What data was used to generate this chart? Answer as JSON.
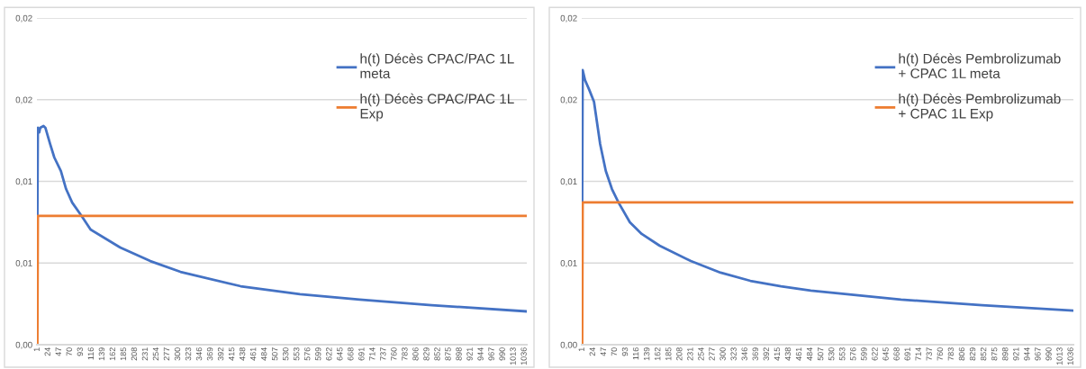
{
  "chart_data": [
    {
      "type": "line",
      "xlim": [
        0,
        1041
      ],
      "xticks": [
        1,
        24,
        47,
        70,
        93,
        116,
        139,
        162,
        185,
        208,
        231,
        254,
        277,
        300,
        323,
        346,
        369,
        392,
        415,
        438,
        461,
        484,
        507,
        530,
        553,
        576,
        599,
        622,
        645,
        668,
        691,
        714,
        737,
        760,
        783,
        806,
        829,
        852,
        875,
        898,
        921,
        944,
        967,
        990,
        1013,
        1036
      ],
      "ylim": [
        0,
        0.02
      ],
      "yticks": [
        {
          "value": 0,
          "label": "0,00"
        },
        {
          "value": 0.005,
          "label": "0,01"
        },
        {
          "value": 0.01,
          "label": "0,01"
        },
        {
          "value": 0.015,
          "label": "0,02"
        },
        {
          "value": 0.02,
          "label": "0,02"
        }
      ],
      "grid": "y",
      "legend": "top right",
      "series": [
        {
          "name": "h(t) Décès CPAC/PAC 1L meta",
          "color": "#4472c4",
          "x": [
            1,
            2,
            5,
            7,
            14,
            18,
            28,
            37,
            51,
            62,
            75,
            95,
            114,
            177,
            241,
            305,
            433,
            559,
            686,
            839,
            1040
          ],
          "values": [
            0.0079,
            0.01328,
            0.013,
            0.01328,
            0.01339,
            0.01328,
            0.01229,
            0.01146,
            0.01063,
            0.00953,
            0.0087,
            0.00788,
            0.00705,
            0.00595,
            0.00512,
            0.00446,
            0.00358,
            0.00309,
            0.00276,
            0.00242,
            0.00204
          ]
        },
        {
          "name": "h(t) Décès CPAC/PAC 1L Exp",
          "color": "#ed7d31",
          "x": [
            1,
            2,
            1040
          ],
          "values": [
            0,
            0.00788,
            0.00788
          ]
        }
      ]
    },
    {
      "type": "line",
      "xlim": [
        0,
        1041
      ],
      "xticks": [
        1,
        24,
        47,
        70,
        93,
        116,
        139,
        162,
        185,
        208,
        231,
        254,
        277,
        300,
        323,
        346,
        369,
        392,
        415,
        438,
        461,
        484,
        507,
        530,
        553,
        576,
        599,
        622,
        645,
        668,
        691,
        714,
        737,
        760,
        783,
        806,
        829,
        852,
        875,
        898,
        921,
        944,
        967,
        990,
        1013,
        1036
      ],
      "ylim": [
        0,
        0.02
      ],
      "yticks": [
        {
          "value": 0,
          "label": "0,00"
        },
        {
          "value": 0.005,
          "label": "0,01"
        },
        {
          "value": 0.01,
          "label": "0,01"
        },
        {
          "value": 0.015,
          "label": "0,02"
        },
        {
          "value": 0.02,
          "label": "0,02"
        }
      ],
      "grid": "y",
      "legend": "top right",
      "series": [
        {
          "name": "h(t) Décès Pembrolizumab + CPAC 1L meta",
          "color": "#4472c4",
          "x": [
            1,
            2,
            7,
            16,
            26,
            39,
            51,
            64,
            78,
            102,
            127,
            165,
            231,
            294,
            357,
            422,
            485,
            676,
            848,
            1040
          ],
          "values": [
            0.00871,
            0.01681,
            0.0162,
            0.0156,
            0.01488,
            0.01229,
            0.01063,
            0.00953,
            0.0087,
            0.00749,
            0.00678,
            0.00606,
            0.00512,
            0.00441,
            0.00391,
            0.00358,
            0.00331,
            0.00276,
            0.00242,
            0.00209
          ]
        },
        {
          "name": "h(t) Décès Pembrolizumab + CPAC 1L Exp",
          "color": "#ed7d31",
          "x": [
            1,
            2,
            1040
          ],
          "values": [
            0,
            0.00871,
            0.00871
          ]
        }
      ]
    }
  ]
}
